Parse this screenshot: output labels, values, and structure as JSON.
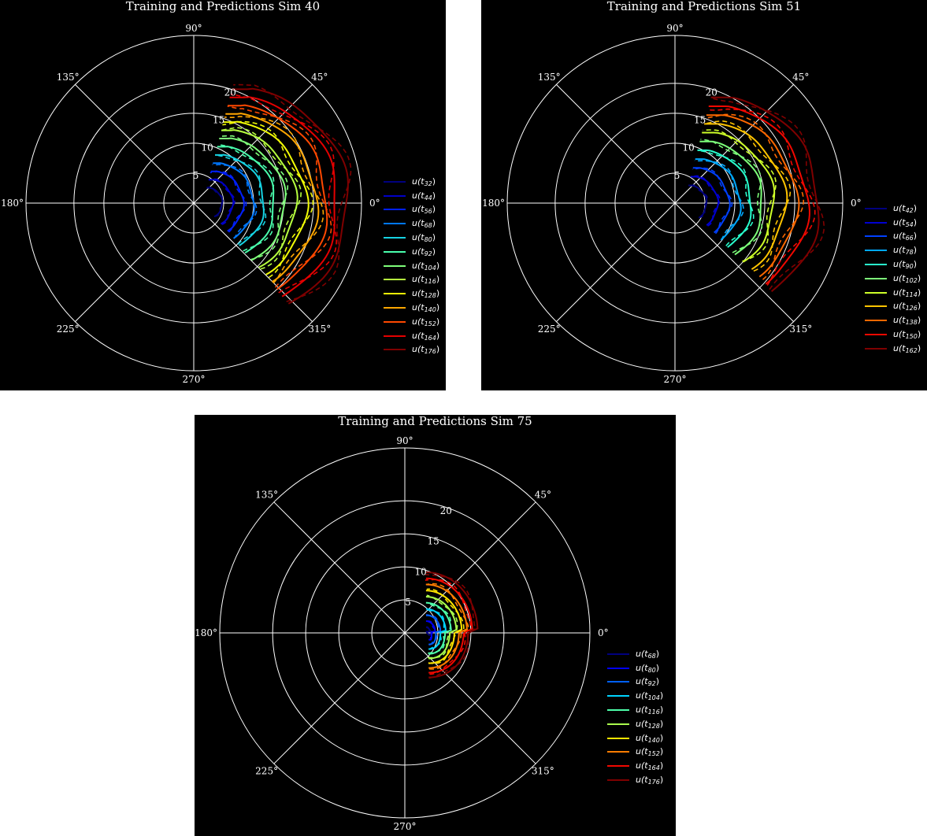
{
  "chart_data": [
    {
      "type": "polar-line",
      "title": "Training and Predictions Sim 40",
      "angle_ticks": [
        "0°",
        "45°",
        "90°",
        "135°",
        "180°",
        "225°",
        "270°",
        "315°"
      ],
      "radial_ticks": [
        "5",
        "10",
        "15",
        "20"
      ],
      "rlim": [
        0,
        28
      ],
      "legend_position": "right",
      "line_styles": {
        "training": "solid",
        "prediction": "dashed"
      },
      "series": [
        {
          "name": "u(t32)",
          "sub": "32",
          "color": "#00007f",
          "radius": 2.6
        },
        {
          "name": "u(t44)",
          "sub": "44",
          "color": "#0000c8",
          "radius": 4.0
        },
        {
          "name": "u(t56)",
          "sub": "56",
          "color": "#0020ff",
          "radius": 5.4
        },
        {
          "name": "u(t68)",
          "sub": "68",
          "color": "#0078ff",
          "radius": 6.8
        },
        {
          "name": "u(t80)",
          "sub": "80",
          "color": "#16d3e3",
          "radius": 8.2
        },
        {
          "name": "u(t92)",
          "sub": "92",
          "color": "#49ffad",
          "radius": 9.6
        },
        {
          "name": "u(t104)",
          "sub": "104",
          "color": "#7fff7a",
          "radius": 11.0
        },
        {
          "name": "u(t116)",
          "sub": "116",
          "color": "#b7ff3f",
          "radius": 12.4
        },
        {
          "name": "u(t128)",
          "sub": "128",
          "color": "#f1fc06",
          "radius": 13.8
        },
        {
          "name": "u(t140)",
          "sub": "140",
          "color": "#ffa600",
          "radius": 15.2
        },
        {
          "name": "u(t152)",
          "sub": "152",
          "color": "#ff4800",
          "radius": 16.6
        },
        {
          "name": "u(t164)",
          "sub": "164",
          "color": "#e40000",
          "radius": 18.0
        },
        {
          "name": "u(t176)",
          "sub": "176",
          "color": "#7f0000",
          "radius": 19.4
        }
      ],
      "angle_range_deg": [
        -60,
        90
      ]
    },
    {
      "type": "polar-line",
      "title": "Training and Predictions Sim 51",
      "angle_ticks": [
        "0°",
        "45°",
        "90°",
        "135°",
        "180°",
        "225°",
        "270°",
        "315°"
      ],
      "radial_ticks": [
        "5",
        "10",
        "15",
        "20"
      ],
      "rlim": [
        0,
        28
      ],
      "legend_position": "right",
      "line_styles": {
        "training": "solid",
        "prediction": "dashed"
      },
      "series": [
        {
          "name": "u(t42)",
          "sub": "42",
          "color": "#00007f",
          "radius": 3.0
        },
        {
          "name": "u(t54)",
          "sub": "54",
          "color": "#0000d1",
          "radius": 4.5
        },
        {
          "name": "u(t66)",
          "sub": "66",
          "color": "#0040ff",
          "radius": 6.0
        },
        {
          "name": "u(t78)",
          "sub": "78",
          "color": "#00a8ff",
          "radius": 7.5
        },
        {
          "name": "u(t90)",
          "sub": "90",
          "color": "#29ffce",
          "radius": 9.0
        },
        {
          "name": "u(t102)",
          "sub": "102",
          "color": "#7dff7a",
          "radius": 10.5
        },
        {
          "name": "u(t114)",
          "sub": "114",
          "color": "#ceff29",
          "radius": 12.0
        },
        {
          "name": "u(t126)",
          "sub": "126",
          "color": "#ffc400",
          "radius": 13.5
        },
        {
          "name": "u(t138)",
          "sub": "138",
          "color": "#ff6800",
          "radius": 15.0
        },
        {
          "name": "u(t150)",
          "sub": "150",
          "color": "#f10800",
          "radius": 16.5
        },
        {
          "name": "u(t162)",
          "sub": "162",
          "color": "#7f0000",
          "radius": 18.0
        }
      ],
      "angle_range_deg": [
        -55,
        90
      ]
    },
    {
      "type": "polar-line",
      "title": "Training and Predictions Sim 75",
      "angle_ticks": [
        "0°",
        "45°",
        "90°",
        "135°",
        "180°",
        "225°",
        "270°",
        "315°"
      ],
      "radial_ticks": [
        "5",
        "10",
        "15",
        "20"
      ],
      "rlim": [
        0,
        28
      ],
      "legend_position": "right",
      "line_styles": {
        "training": "solid",
        "prediction": "dashed"
      },
      "series": [
        {
          "name": "u(t68)",
          "sub": "68",
          "color": "#00007f",
          "radius": 0.5
        },
        {
          "name": "u(t80)",
          "sub": "80",
          "color": "#0000f1",
          "radius": 1.2
        },
        {
          "name": "u(t92)",
          "sub": "92",
          "color": "#0060ff",
          "radius": 1.9
        },
        {
          "name": "u(t104)",
          "sub": "104",
          "color": "#00d4ff",
          "radius": 2.6
        },
        {
          "name": "u(t116)",
          "sub": "116",
          "color": "#4dffaa",
          "radius": 3.3
        },
        {
          "name": "u(t128)",
          "sub": "128",
          "color": "#aaff4d",
          "radius": 4.0
        },
        {
          "name": "u(t140)",
          "sub": "140",
          "color": "#ffe500",
          "radius": 4.7
        },
        {
          "name": "u(t152)",
          "sub": "152",
          "color": "#ff7c00",
          "radius": 5.4
        },
        {
          "name": "u(t164)",
          "sub": "164",
          "color": "#f10800",
          "radius": 6.1
        },
        {
          "name": "u(t176)",
          "sub": "176",
          "color": "#7f0000",
          "radius": 6.8
        }
      ],
      "angle_range_deg": [
        -90,
        90
      ]
    }
  ]
}
